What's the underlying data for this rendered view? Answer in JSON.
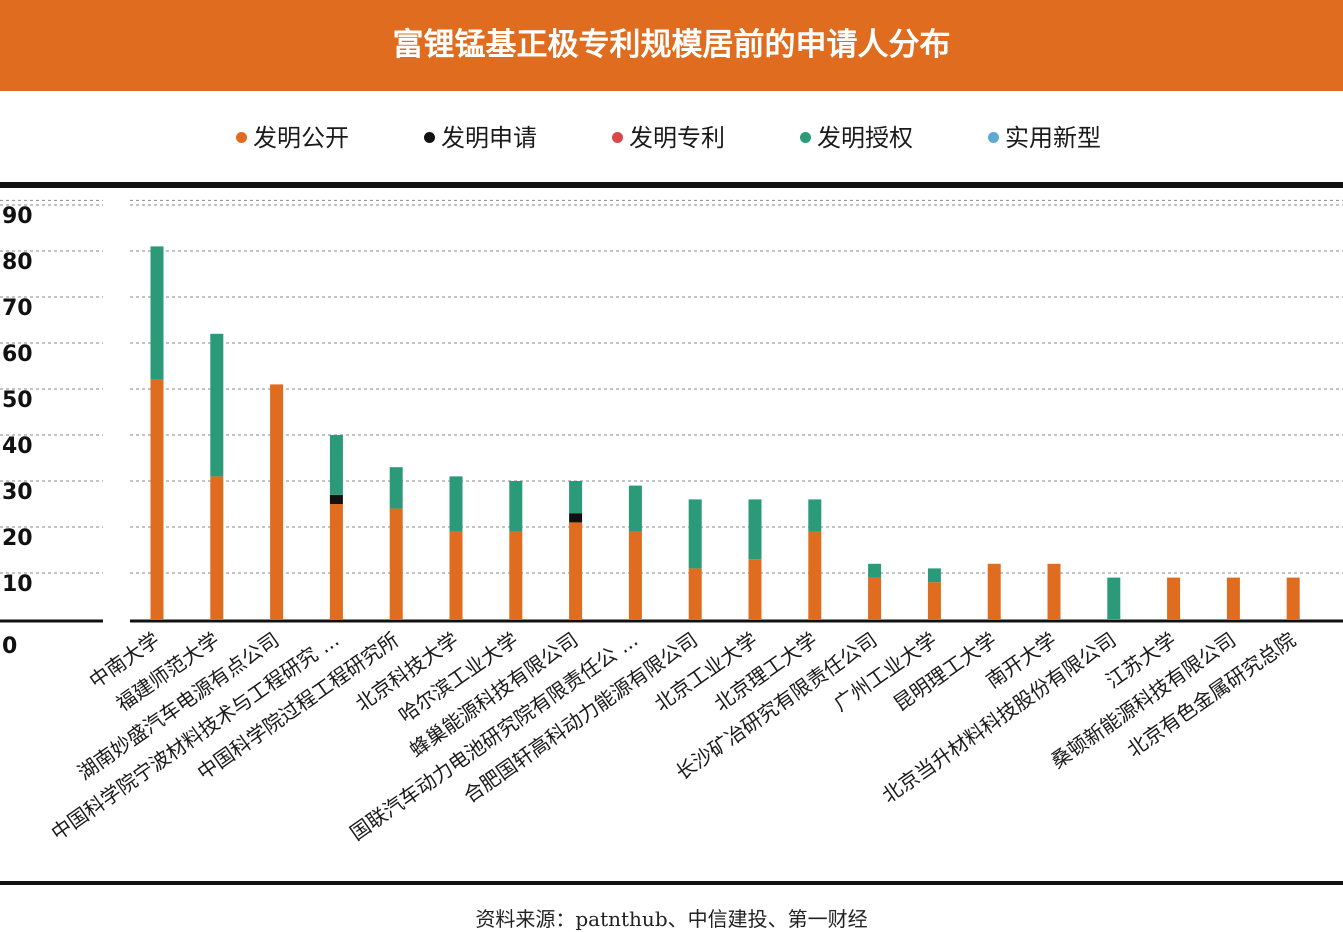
{
  "title": "富锂锰基正极专利规模居前的申请人分布",
  "source": "资料来源：patnthub、中信建投、第一财经",
  "legend": [
    {
      "label": "发明公开",
      "color": "#E06C1F"
    },
    {
      "label": "发明申请",
      "color": "#111111"
    },
    {
      "label": "发明专利",
      "color": "#D9474B"
    },
    {
      "label": "发明授权",
      "color": "#2A9A78"
    },
    {
      "label": "实用新型",
      "color": "#5DA9D0"
    }
  ],
  "chart_data": {
    "type": "bar",
    "stacked": true,
    "title": "富锂锰基正极专利规模居前的申请人分布",
    "ylim": [
      0,
      90
    ],
    "yticks": [
      "0",
      "10",
      "20",
      "30",
      "40",
      "50",
      "60",
      "70",
      "80",
      "90"
    ],
    "grid": true,
    "legend_position": "top",
    "categories": [
      "中南大学",
      "福建师范大学",
      "湖南妙盛汽车电源有点公司",
      "中国科学院宁波材料技术与工程研究 ...",
      "中国科学院过程工程研究所",
      "北京科技大学",
      "哈尔滨工业大学",
      "蜂巢能源科技有限公司",
      "国联汽车动力电池研究院有限责任公 ...",
      "合肥国轩高科动力能源有限公司",
      "北京工业大学",
      "北京理工大学",
      "长沙矿冶研究有限责任公司",
      "广州工业大学",
      "昆明理工大学",
      "南开大学",
      "北京当升材料科技股份有限公司",
      "江苏大学",
      "桑顿新能源科技有限公司",
      "北京有色金属研究总院"
    ],
    "series": [
      {
        "name": "发明公开",
        "color": "#E06C1F",
        "values": [
          52,
          31,
          51,
          25,
          24,
          19,
          19,
          21,
          19,
          11,
          13,
          19,
          9,
          8,
          12,
          12,
          0,
          9,
          9,
          9
        ]
      },
      {
        "name": "发明申请",
        "color": "#111111",
        "values": [
          0,
          0,
          0,
          2,
          0,
          0,
          0,
          2,
          0,
          0,
          0,
          0,
          0,
          0,
          0,
          0,
          0,
          0,
          0,
          0
        ]
      },
      {
        "name": "发明专利",
        "color": "#D9474B",
        "values": [
          0,
          0,
          0,
          0,
          0,
          0,
          0,
          0,
          0,
          0,
          0,
          0,
          0,
          0,
          0,
          0,
          0,
          0,
          0,
          0
        ]
      },
      {
        "name": "发明授权",
        "color": "#2A9A78",
        "values": [
          29,
          31,
          0,
          13,
          9,
          12,
          11,
          7,
          10,
          15,
          13,
          7,
          3,
          3,
          0,
          0,
          9,
          0,
          0,
          0
        ]
      },
      {
        "name": "实用新型",
        "color": "#5DA9D0",
        "values": [
          0,
          0,
          0,
          0,
          0,
          0,
          0,
          0,
          0,
          0,
          0,
          0,
          0,
          0,
          0,
          0,
          0,
          0,
          0,
          0
        ]
      }
    ]
  }
}
